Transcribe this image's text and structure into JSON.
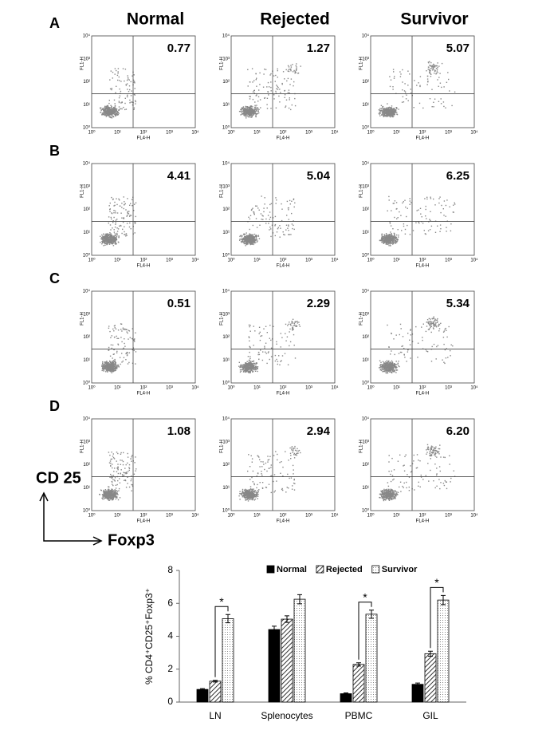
{
  "flow": {
    "columns": [
      "Normal",
      "Rejected",
      "Survivor"
    ],
    "rows": [
      {
        "label": "A",
        "values": [
          "0.77",
          "1.27",
          "5.07"
        ]
      },
      {
        "label": "B",
        "values": [
          "4.41",
          "5.04",
          "6.25"
        ]
      },
      {
        "label": "C",
        "values": [
          "0.51",
          "2.29",
          "5.34"
        ]
      },
      {
        "label": "D",
        "values": [
          "1.08",
          "2.94",
          "6.20"
        ]
      }
    ],
    "x_axis": "FL4-H",
    "y_axis": "FL1-H",
    "ticks": [
      "10⁰",
      "10¹",
      "10²",
      "10³",
      "10⁴"
    ],
    "ylabel": "CD 25",
    "xlabel": "Foxp3"
  },
  "chart_data": {
    "type": "bar",
    "ylabel": "% CD4⁺CD25⁺Foxp3⁺",
    "categories": [
      "LN",
      "Splenocytes",
      "PBMC",
      "GIL"
    ],
    "series": [
      {
        "name": "Normal",
        "color": "#000000",
        "pattern": "solid",
        "values": [
          0.77,
          4.41,
          0.51,
          1.08
        ],
        "errors": [
          0.05,
          0.2,
          0.05,
          0.08
        ]
      },
      {
        "name": "Rejected",
        "color": "#444444",
        "pattern": "hatch",
        "values": [
          1.27,
          5.04,
          2.29,
          2.94
        ],
        "errors": [
          0.05,
          0.2,
          0.1,
          0.15
        ]
      },
      {
        "name": "Survivor",
        "color": "#666666",
        "pattern": "dots",
        "values": [
          5.07,
          6.25,
          5.34,
          6.2
        ],
        "errors": [
          0.25,
          0.28,
          0.25,
          0.28
        ]
      }
    ],
    "ylim": [
      0,
      8
    ],
    "yticks": [
      0,
      2,
      4,
      6,
      8
    ],
    "annotations": [
      {
        "text": "*",
        "category": "LN"
      },
      {
        "text": "*",
        "category": "PBMC"
      },
      {
        "text": "*",
        "category": "GIL"
      }
    ],
    "legend": "top"
  }
}
